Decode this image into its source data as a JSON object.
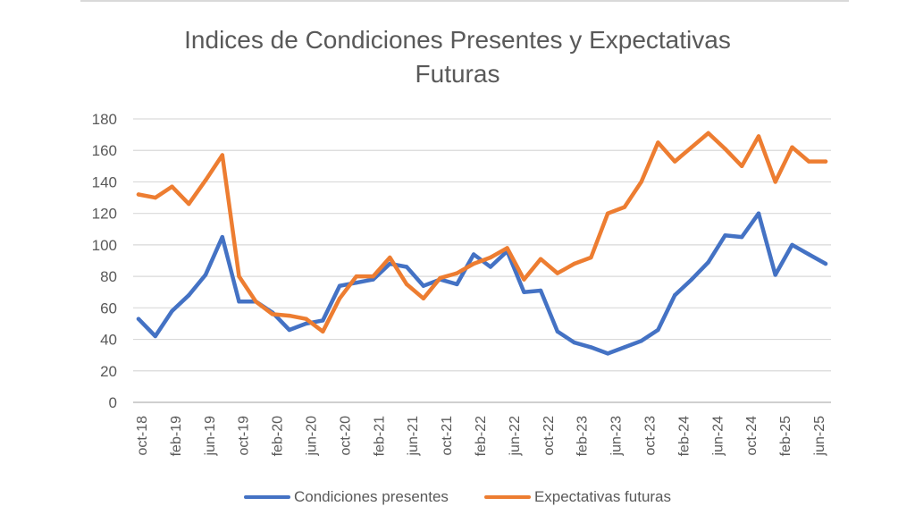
{
  "chart_data": {
    "type": "line",
    "title_line1": "Indices de Condiciones Presentes y Expectativas",
    "title_line2": "Futuras",
    "ylim": [
      0,
      180
    ],
    "yticks": [
      0,
      20,
      40,
      60,
      80,
      100,
      120,
      140,
      160,
      180
    ],
    "grid": true,
    "legend_position": "bottom",
    "xtick_labels": [
      "oct-18",
      "feb-19",
      "jun-19",
      "oct-19",
      "feb-20",
      "jun-20",
      "oct-20",
      "feb-21",
      "jun-21",
      "oct-21",
      "feb-22",
      "jun-22",
      "oct-22",
      "feb-23",
      "jun-23",
      "oct-23",
      "feb-24",
      "jun-24",
      "oct-24",
      "feb-25",
      "jun-25"
    ],
    "series": [
      {
        "name": "Condiciones presentes",
        "color": "#4472c4",
        "values": [
          53,
          42,
          58,
          68,
          81,
          105,
          64,
          64,
          57,
          46,
          50,
          52,
          74,
          76,
          78,
          88,
          86,
          74,
          78,
          75,
          94,
          86,
          96,
          70,
          71,
          45,
          38,
          35,
          31,
          35,
          39,
          46,
          68,
          78,
          89,
          106,
          105,
          120,
          81,
          100,
          94,
          88
        ]
      },
      {
        "name": "Expectativas futuras",
        "color": "#ed7d31",
        "values": [
          132,
          130,
          137,
          126,
          141,
          157,
          80,
          64,
          56,
          55,
          53,
          45,
          66,
          80,
          80,
          92,
          75,
          66,
          79,
          82,
          88,
          92,
          98,
          78,
          91,
          82,
          88,
          92,
          120,
          124,
          140,
          165,
          153,
          162,
          171,
          161,
          150,
          169,
          140,
          162,
          153,
          153
        ]
      }
    ]
  }
}
